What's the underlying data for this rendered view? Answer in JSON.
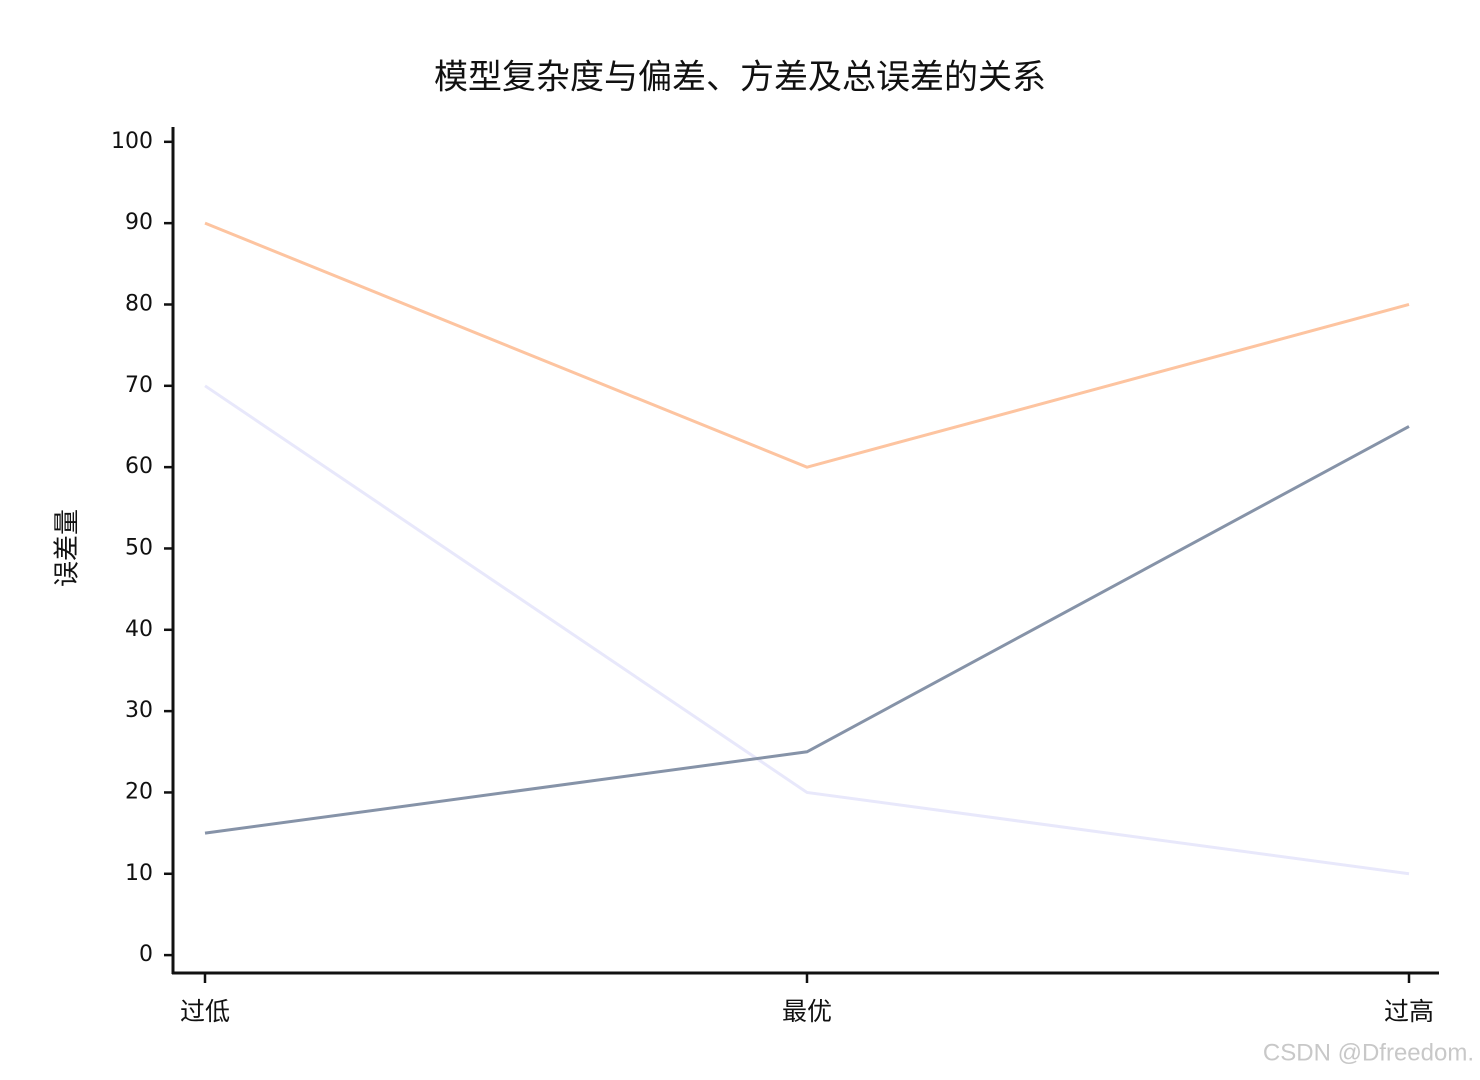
{
  "chart_data": {
    "type": "line",
    "title": "模型复杂度与偏差、方差及总误差的关系",
    "ylabel": "误差量",
    "categories": [
      "过低",
      "最优",
      "过高"
    ],
    "series": [
      {
        "color": "#fdc4a0",
        "values": [
          90,
          60,
          80
        ]
      },
      {
        "color": "#e8e8fb",
        "values": [
          70,
          20,
          10
        ]
      },
      {
        "color": "#8693a8",
        "values": [
          15,
          25,
          65
        ]
      }
    ],
    "ylim": [
      -2.2,
      101.7
    ],
    "yticks": [
      0,
      10,
      20,
      30,
      40,
      50,
      60,
      70,
      80,
      90,
      100
    ],
    "grid": false,
    "watermark": "CSDN @Dfreedom."
  }
}
